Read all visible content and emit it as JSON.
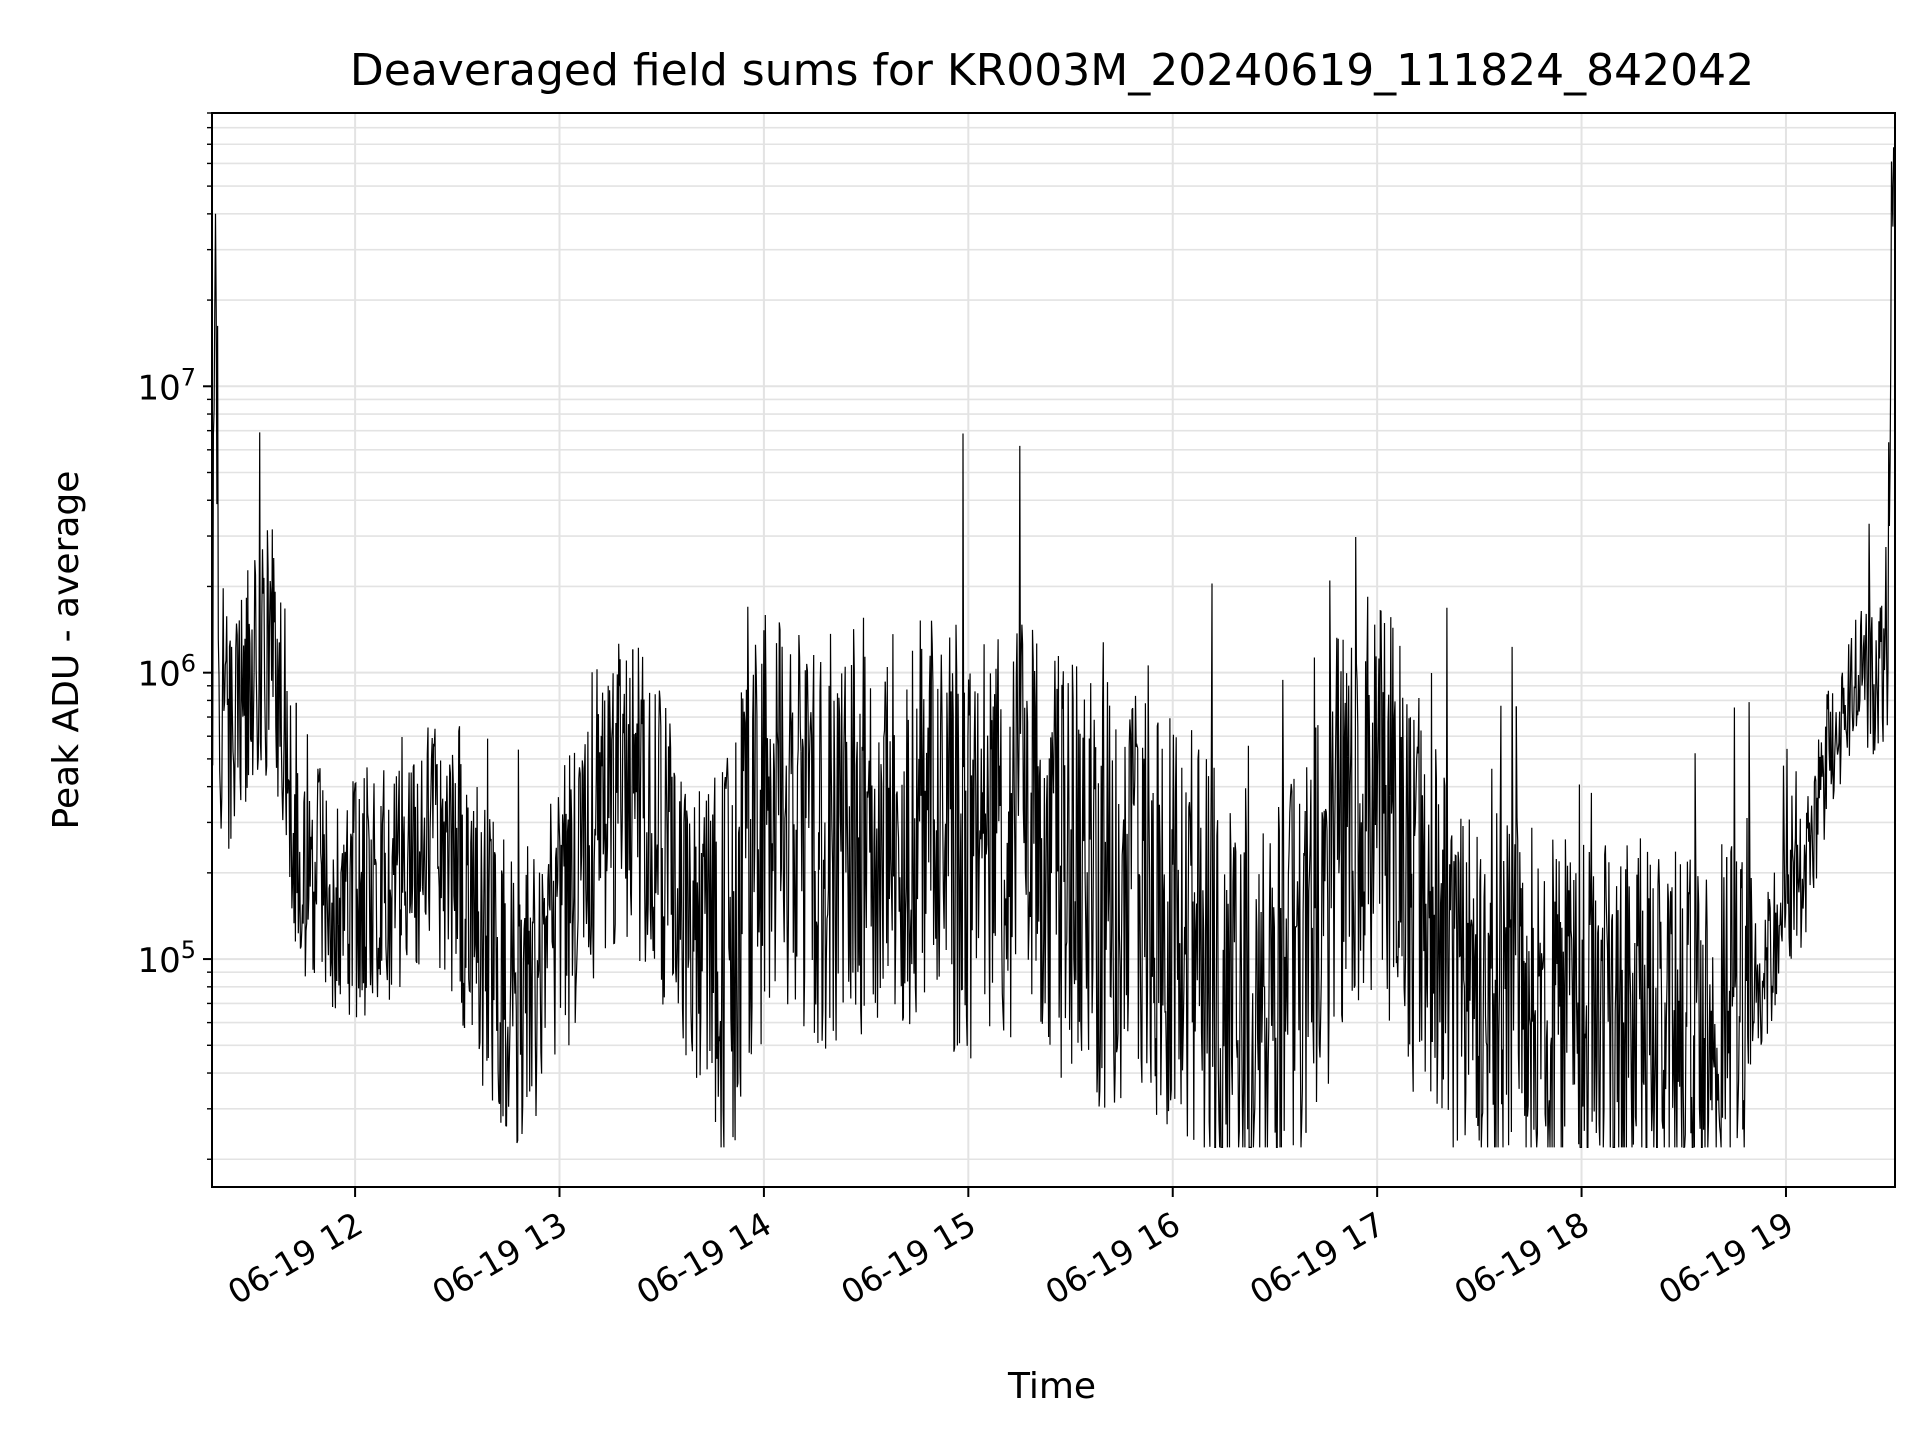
{
  "chart_data": {
    "type": "line",
    "title": "Deaveraged field sums for KR003M_20240619_111824_842042",
    "xlabel": "Time",
    "ylabel": "Peak ADU - average",
    "yscale": "log",
    "grid": true,
    "line_color": "#000000",
    "x_ticks": [
      "06-19 12",
      "06-19 13",
      "06-19 14",
      "06-19 15",
      "06-19 16",
      "06-19 17",
      "06-19 18",
      "06-19 19"
    ],
    "x_range": [
      "2024-06-19 11:18",
      "2024-06-19 19:32"
    ],
    "y_ticks": [
      {
        "value": 100000,
        "base": "10",
        "exp": "5"
      },
      {
        "value": 1000000,
        "base": "10",
        "exp": "6"
      },
      {
        "value": 10000000,
        "base": "10",
        "exp": "7"
      }
    ],
    "ylim": [
      16000,
      90000000
    ],
    "series": [
      {
        "x": [
          "11:18",
          "11:19",
          "11:20",
          "11:22",
          "11:24",
          "11:26",
          "11:28",
          "11:30",
          "11:33",
          "11:36",
          "11:38",
          "11:40",
          "11:42",
          "11:45",
          "11:48",
          "11:50",
          "11:52",
          "11:55",
          "12:00",
          "12:10",
          "12:20",
          "12:30",
          "12:40",
          "12:50",
          "13:00",
          "13:10",
          "13:20",
          "13:30",
          "13:40",
          "13:50",
          "14:00",
          "14:15",
          "14:30",
          "14:45",
          "15:00",
          "15:15",
          "15:30",
          "15:45",
          "16:00",
          "16:10",
          "16:20",
          "16:30",
          "16:40",
          "16:50",
          "17:00",
          "17:10",
          "17:20",
          "17:30",
          "17:40",
          "17:50",
          "18:00",
          "18:15",
          "18:30",
          "18:45",
          "18:50",
          "18:55",
          "19:00",
          "19:05",
          "19:10",
          "19:12",
          "19:15",
          "19:20",
          "19:22",
          "19:25",
          "19:28",
          "19:30",
          "19:31",
          "19:32"
        ],
        "y": [
          500000,
          25000000,
          800000,
          700000,
          650000,
          700000,
          800000,
          1000000,
          1100000,
          1200000,
          900000,
          500000,
          300000,
          250000,
          200000,
          180000,
          160000,
          200000,
          170000,
          200000,
          250000,
          200000,
          90000,
          70000,
          120000,
          300000,
          400000,
          250000,
          130000,
          110000,
          300000,
          250000,
          300000,
          280000,
          250000,
          300000,
          200000,
          150000,
          140000,
          100000,
          55000,
          60000,
          100000,
          300000,
          350000,
          200000,
          100000,
          75000,
          70000,
          68000,
          60000,
          60000,
          55000,
          60000,
          75000,
          100000,
          150000,
          200000,
          350000,
          500000,
          600000,
          900000,
          1000000,
          900000,
          1000000,
          900000,
          60000000,
          60000000
        ]
      }
    ]
  }
}
